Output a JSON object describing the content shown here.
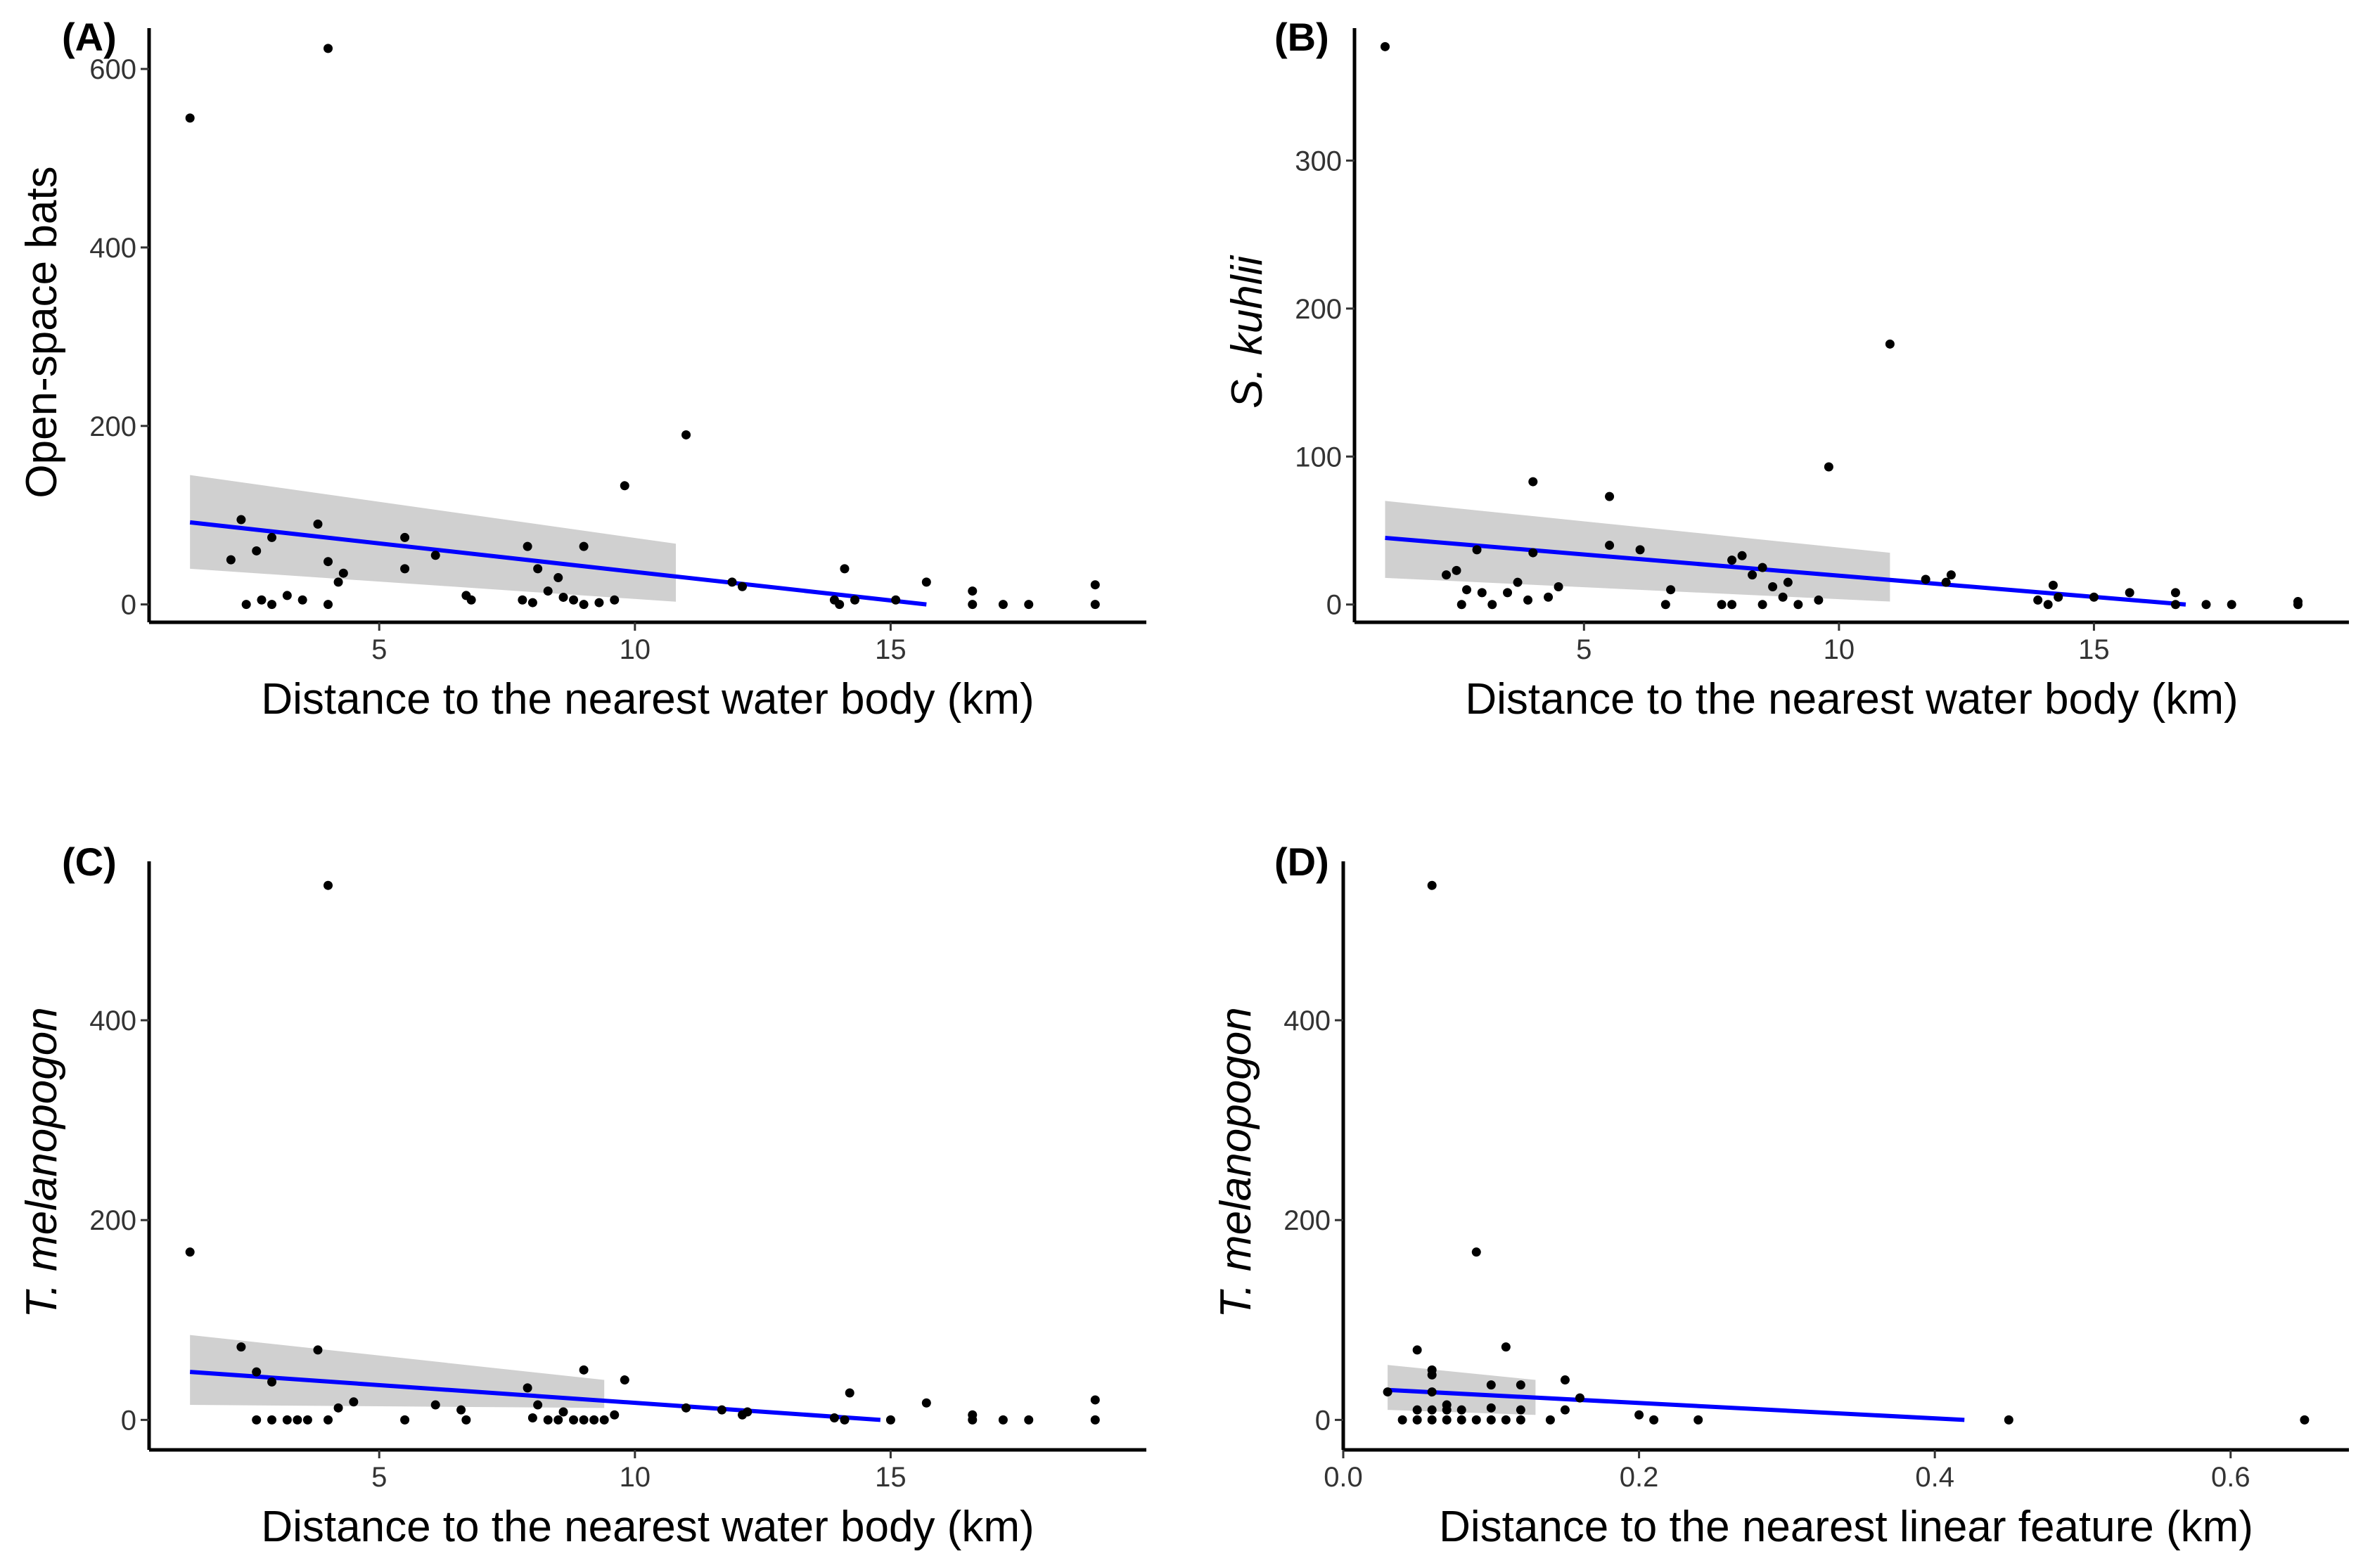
{
  "chart_data": [
    {
      "type": "scatter",
      "panel_label": "(A)",
      "xlabel": "Distance to the nearest water body (km)",
      "ylabel": "Open-space bats",
      "ylabel_italic": false,
      "xlim": [
        0.5,
        20
      ],
      "ylim": [
        -20,
        630
      ],
      "xticks": [
        5,
        10,
        15
      ],
      "yticks": [
        0,
        200,
        400,
        600
      ],
      "xtick_decimals": 0,
      "points": [
        [
          1.3,
          545
        ],
        [
          4.0,
          623
        ],
        [
          11.0,
          190
        ],
        [
          9.8,
          133
        ],
        [
          2.3,
          95
        ],
        [
          3.8,
          90
        ],
        [
          2.9,
          75
        ],
        [
          5.5,
          75
        ],
        [
          6.1,
          55
        ],
        [
          7.9,
          65
        ],
        [
          9.0,
          65
        ],
        [
          2.1,
          50
        ],
        [
          2.6,
          60
        ],
        [
          4.0,
          48
        ],
        [
          4.3,
          35
        ],
        [
          4.2,
          25
        ],
        [
          5.5,
          40
        ],
        [
          8.1,
          40
        ],
        [
          8.5,
          30
        ],
        [
          8.3,
          15
        ],
        [
          2.4,
          0
        ],
        [
          2.7,
          5
        ],
        [
          2.9,
          0
        ],
        [
          3.2,
          10
        ],
        [
          3.5,
          5
        ],
        [
          4.0,
          0
        ],
        [
          6.7,
          10
        ],
        [
          6.8,
          5
        ],
        [
          7.8,
          5
        ],
        [
          8.0,
          2
        ],
        [
          8.6,
          8
        ],
        [
          8.8,
          5
        ],
        [
          9.0,
          0
        ],
        [
          9.3,
          2
        ],
        [
          9.6,
          5
        ],
        [
          11.9,
          25
        ],
        [
          12.1,
          20
        ],
        [
          13.9,
          5
        ],
        [
          14.0,
          0
        ],
        [
          14.1,
          40
        ],
        [
          14.3,
          5
        ],
        [
          15.1,
          5
        ],
        [
          15.7,
          25
        ],
        [
          16.6,
          15
        ],
        [
          16.6,
          0
        ],
        [
          17.2,
          0
        ],
        [
          17.7,
          0
        ],
        [
          19.0,
          22
        ],
        [
          19.0,
          0
        ]
      ],
      "fit": {
        "x0": 1.3,
        "y0": 92,
        "x1": 15.7,
        "y1": 0
      },
      "ci": {
        "x1": 10.8,
        "upper": [
          145,
          68
        ],
        "lower": [
          40,
          3
        ]
      }
    },
    {
      "type": "scatter",
      "panel_label": "(B)",
      "xlabel": "Distance to the nearest water body (km)",
      "ylabel": "S. kuhlii",
      "ylabel_italic": true,
      "xlim": [
        0.5,
        20
      ],
      "ylim": [
        -12,
        380
      ],
      "xticks": [
        5,
        10,
        15
      ],
      "yticks": [
        0,
        100,
        200,
        300
      ],
      "xtick_decimals": 0,
      "points": [
        [
          1.1,
          377
        ],
        [
          11.0,
          176
        ],
        [
          9.8,
          93
        ],
        [
          4.0,
          83
        ],
        [
          5.5,
          73
        ],
        [
          2.3,
          20
        ],
        [
          2.5,
          23
        ],
        [
          2.7,
          10
        ],
        [
          3.0,
          8
        ],
        [
          2.9,
          37
        ],
        [
          3.5,
          8
        ],
        [
          3.7,
          15
        ],
        [
          4.0,
          35
        ],
        [
          3.9,
          3
        ],
        [
          4.3,
          5
        ],
        [
          4.5,
          12
        ],
        [
          2.6,
          0
        ],
        [
          3.2,
          0
        ],
        [
          5.5,
          40
        ],
        [
          6.1,
          37
        ],
        [
          6.7,
          10
        ],
        [
          6.6,
          0
        ],
        [
          7.7,
          0
        ],
        [
          7.9,
          30
        ],
        [
          8.1,
          33
        ],
        [
          8.3,
          20
        ],
        [
          8.5,
          25
        ],
        [
          8.7,
          12
        ],
        [
          8.9,
          5
        ],
        [
          9.0,
          15
        ],
        [
          9.2,
          0
        ],
        [
          9.6,
          3
        ],
        [
          8.5,
          0
        ],
        [
          7.9,
          0
        ],
        [
          11.7,
          17
        ],
        [
          12.1,
          15
        ],
        [
          12.2,
          20
        ],
        [
          13.9,
          3
        ],
        [
          14.1,
          0
        ],
        [
          14.2,
          13
        ],
        [
          14.3,
          5
        ],
        [
          15.0,
          5
        ],
        [
          15.7,
          8
        ],
        [
          16.6,
          8
        ],
        [
          16.6,
          0
        ],
        [
          17.2,
          0
        ],
        [
          17.7,
          0
        ],
        [
          19.0,
          2
        ],
        [
          19.0,
          0
        ]
      ],
      "fit": {
        "x0": 1.1,
        "y0": 45,
        "x1": 16.8,
        "y1": 0
      },
      "ci": {
        "x1": 11.0,
        "upper": [
          70,
          35
        ],
        "lower": [
          18,
          2
        ]
      }
    },
    {
      "type": "scatter",
      "panel_label": "(C)",
      "xlabel": "Distance to the nearest water body (km)",
      "ylabel": "T. melanopogon",
      "ylabel_italic": true,
      "xlim": [
        0.5,
        20
      ],
      "ylim": [
        -30,
        545
      ],
      "xticks": [
        5,
        10,
        15
      ],
      "yticks": [
        0,
        200,
        400
      ],
      "xtick_decimals": 0,
      "points": [
        [
          4.0,
          535
        ],
        [
          1.3,
          168
        ],
        [
          2.3,
          73
        ],
        [
          3.8,
          70
        ],
        [
          2.6,
          48
        ],
        [
          2.9,
          38
        ],
        [
          4.2,
          12
        ],
        [
          4.5,
          18
        ],
        [
          6.1,
          15
        ],
        [
          6.6,
          10
        ],
        [
          7.9,
          32
        ],
        [
          8.1,
          15
        ],
        [
          9.0,
          50
        ],
        [
          9.8,
          40
        ],
        [
          9.6,
          5
        ],
        [
          2.6,
          0
        ],
        [
          2.9,
          0
        ],
        [
          3.2,
          0
        ],
        [
          3.4,
          0
        ],
        [
          3.6,
          0
        ],
        [
          4.0,
          0
        ],
        [
          5.5,
          0
        ],
        [
          6.7,
          0
        ],
        [
          8.0,
          2
        ],
        [
          8.3,
          0
        ],
        [
          8.5,
          0
        ],
        [
          8.6,
          8
        ],
        [
          8.8,
          0
        ],
        [
          9.0,
          0
        ],
        [
          9.2,
          0
        ],
        [
          9.4,
          0
        ],
        [
          11.0,
          12
        ],
        [
          11.7,
          10
        ],
        [
          12.1,
          5
        ],
        [
          12.2,
          8
        ],
        [
          13.9,
          2
        ],
        [
          14.1,
          0
        ],
        [
          14.2,
          27
        ],
        [
          15.0,
          0
        ],
        [
          15.7,
          17
        ],
        [
          16.6,
          5
        ],
        [
          16.6,
          0
        ],
        [
          17.2,
          0
        ],
        [
          17.7,
          0
        ],
        [
          19.0,
          20
        ],
        [
          19.0,
          0
        ]
      ],
      "fit": {
        "x0": 1.3,
        "y0": 48,
        "x1": 14.8,
        "y1": 0
      },
      "ci": {
        "x1": 9.4,
        "upper": [
          85,
          40
        ],
        "lower": [
          15,
          12
        ]
      }
    },
    {
      "type": "scatter",
      "panel_label": "(D)",
      "xlabel": "Distance to the nearest linear feature (km)",
      "ylabel": "T. melanopogon",
      "ylabel_italic": true,
      "xlim": [
        0,
        0.68
      ],
      "ylim": [
        -30,
        545
      ],
      "xticks": [
        0.0,
        0.2,
        0.4,
        0.6
      ],
      "yticks": [
        0,
        200,
        400
      ],
      "xtick_decimals": 1,
      "points": [
        [
          0.06,
          535
        ],
        [
          0.09,
          168
        ],
        [
          0.11,
          73
        ],
        [
          0.05,
          70
        ],
        [
          0.06,
          50
        ],
        [
          0.06,
          45
        ],
        [
          0.1,
          35
        ],
        [
          0.12,
          35
        ],
        [
          0.15,
          40
        ],
        [
          0.16,
          22
        ],
        [
          0.03,
          28
        ],
        [
          0.04,
          0
        ],
        [
          0.05,
          0
        ],
        [
          0.05,
          10
        ],
        [
          0.06,
          0
        ],
        [
          0.06,
          10
        ],
        [
          0.06,
          28
        ],
        [
          0.07,
          0
        ],
        [
          0.07,
          15
        ],
        [
          0.07,
          10
        ],
        [
          0.08,
          0
        ],
        [
          0.08,
          10
        ],
        [
          0.09,
          0
        ],
        [
          0.1,
          0
        ],
        [
          0.1,
          12
        ],
        [
          0.11,
          0
        ],
        [
          0.12,
          0
        ],
        [
          0.12,
          10
        ],
        [
          0.14,
          0
        ],
        [
          0.15,
          10
        ],
        [
          0.2,
          5
        ],
        [
          0.21,
          0
        ],
        [
          0.24,
          0
        ],
        [
          0.45,
          0
        ],
        [
          0.65,
          0
        ]
      ],
      "fit": {
        "x0": 0.03,
        "y0": 30,
        "x1": 0.42,
        "y1": 0
      },
      "ci": {
        "x1": 0.13,
        "upper": [
          55,
          40
        ],
        "lower": [
          10,
          5
        ]
      }
    }
  ]
}
